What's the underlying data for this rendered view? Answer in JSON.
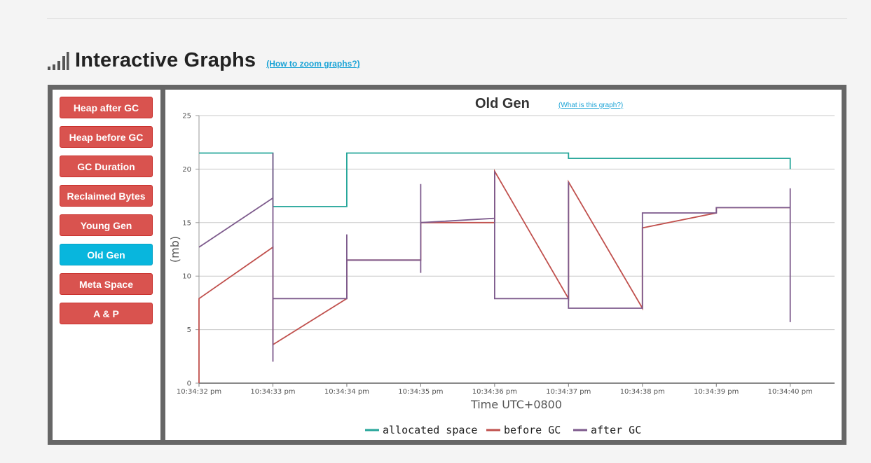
{
  "heading": {
    "title": "Interactive Graphs",
    "zoom_link": "(How to zoom graphs?)",
    "icon": "signal-bars-icon"
  },
  "sidebar": {
    "items": [
      {
        "label": "Heap after GC",
        "active": false
      },
      {
        "label": "Heap before GC",
        "active": false
      },
      {
        "label": "GC Duration",
        "active": false
      },
      {
        "label": "Reclaimed Bytes",
        "active": false
      },
      {
        "label": "Young Gen",
        "active": false
      },
      {
        "label": "Old Gen",
        "active": true
      },
      {
        "label": "Meta Space",
        "active": false
      },
      {
        "label": "A & P",
        "active": false
      }
    ],
    "button_color": "#d9534f",
    "active_color": "#08b6dd"
  },
  "chart_link": "(What is this graph?)",
  "chart_data": {
    "type": "line",
    "title": "Old Gen",
    "xlabel": "Time UTC+0800",
    "ylabel": "(mb)",
    "ylim": [
      0,
      25
    ],
    "yticks": [
      0,
      5,
      10,
      15,
      20,
      25
    ],
    "xlim": [
      0,
      8.6
    ],
    "xticks": [
      0,
      1,
      2,
      3,
      4,
      5,
      6,
      7,
      8
    ],
    "xtick_labels": [
      "10:34:32 pm",
      "10:34:33 pm",
      "10:34:34 pm",
      "10:34:35 pm",
      "10:34:36 pm",
      "10:34:37 pm",
      "10:34:38 pm",
      "10:34:39 pm",
      "10:34:40 pm"
    ],
    "grid": "horizontal",
    "legend_position": "bottom-center",
    "series": [
      {
        "name": "allocated space",
        "color": "#26a69a",
        "points": [
          [
            0,
            21.5
          ],
          [
            1,
            21.5
          ],
          [
            1,
            16.5
          ],
          [
            2,
            16.5
          ],
          [
            2,
            21.5
          ],
          [
            5,
            21.5
          ],
          [
            5,
            21
          ],
          [
            8,
            21
          ],
          [
            8,
            20
          ]
        ]
      },
      {
        "name": "before GC",
        "color": "#c0504d",
        "points": [
          [
            0,
            0
          ],
          [
            0,
            7.9
          ],
          [
            1,
            12.7
          ],
          [
            1,
            3.6
          ],
          [
            2,
            7.9
          ],
          [
            2,
            11.5
          ],
          [
            3,
            11.5
          ],
          [
            3,
            15
          ],
          [
            4,
            15
          ],
          [
            4,
            19.8
          ],
          [
            5,
            7.9
          ],
          [
            5,
            18.8
          ],
          [
            6,
            7
          ],
          [
            6,
            14.5
          ],
          [
            7,
            15.9
          ],
          [
            7,
            16.4
          ],
          [
            8,
            16.4
          ]
        ]
      },
      {
        "name": "after GC",
        "color": "#7d5a8c",
        "points": [
          [
            0,
            12.7
          ],
          [
            1,
            17.3
          ],
          [
            1,
            21.5
          ],
          [
            1,
            2
          ],
          [
            1,
            7.9
          ],
          [
            2,
            7.9
          ],
          [
            2,
            13.9
          ],
          [
            2,
            11.5
          ],
          [
            3,
            11.5
          ],
          [
            3,
            10.3
          ],
          [
            3,
            18.6
          ],
          [
            3,
            15
          ],
          [
            4,
            15.4
          ],
          [
            4,
            19.8
          ],
          [
            4,
            7.9
          ],
          [
            5,
            7.9
          ],
          [
            5,
            18.8
          ],
          [
            5,
            7
          ],
          [
            6,
            7
          ],
          [
            6,
            15.9
          ],
          [
            7,
            15.9
          ],
          [
            7,
            16.4
          ],
          [
            8,
            16.4
          ],
          [
            8,
            18.2
          ],
          [
            8,
            5.7
          ]
        ]
      }
    ]
  }
}
